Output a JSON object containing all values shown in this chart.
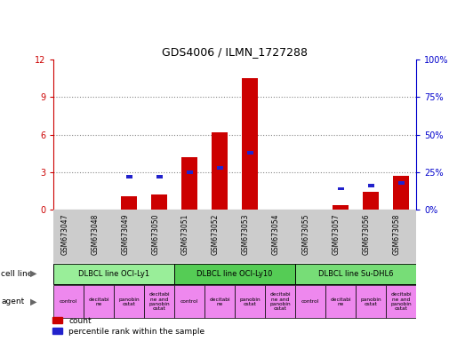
{
  "title": "GDS4006 / ILMN_1727288",
  "samples": [
    "GSM673047",
    "GSM673048",
    "GSM673049",
    "GSM673050",
    "GSM673051",
    "GSM673052",
    "GSM673053",
    "GSM673054",
    "GSM673055",
    "GSM673057",
    "GSM673056",
    "GSM673058"
  ],
  "counts": [
    0.0,
    0.0,
    1.1,
    1.2,
    4.2,
    6.2,
    10.5,
    0.0,
    0.0,
    0.4,
    1.4,
    2.7
  ],
  "percentiles_pct": [
    0.0,
    0.0,
    22.0,
    22.0,
    25.0,
    28.0,
    38.0,
    0.0,
    0.0,
    14.0,
    16.0,
    18.0
  ],
  "ylim_left": [
    0,
    12
  ],
  "ylim_right": [
    0,
    100
  ],
  "yticks_left": [
    0,
    3,
    6,
    9,
    12
  ],
  "yticks_right": [
    0,
    25,
    50,
    75,
    100
  ],
  "cell_lines": [
    {
      "label": "DLBCL line OCI-Ly1",
      "start": 0,
      "end": 4,
      "color": "#99ee99"
    },
    {
      "label": "DLBCL line OCI-Ly10",
      "start": 4,
      "end": 8,
      "color": "#55cc55"
    },
    {
      "label": "DLBCL line Su-DHL6",
      "start": 8,
      "end": 12,
      "color": "#77dd77"
    }
  ],
  "agents": [
    "control",
    "decitabi\nne",
    "panobin\nostat",
    "decitabi\nne and\npanobin\nostat",
    "control",
    "decitabi\nne",
    "panobin\nostat",
    "decitabi\nne and\npanobin\nostat",
    "control",
    "decitabi\nne",
    "panobin\nostat",
    "decitabi\nne and\npanobin\nostat"
  ],
  "agent_color": "#ee88ee",
  "bar_color_red": "#cc0000",
  "bar_color_blue": "#2222cc",
  "grid_color": "#888888",
  "left_axis_color": "#cc0000",
  "right_axis_color": "#0000cc",
  "bg_color": "#ffffff",
  "sample_bg_color": "#cccccc"
}
